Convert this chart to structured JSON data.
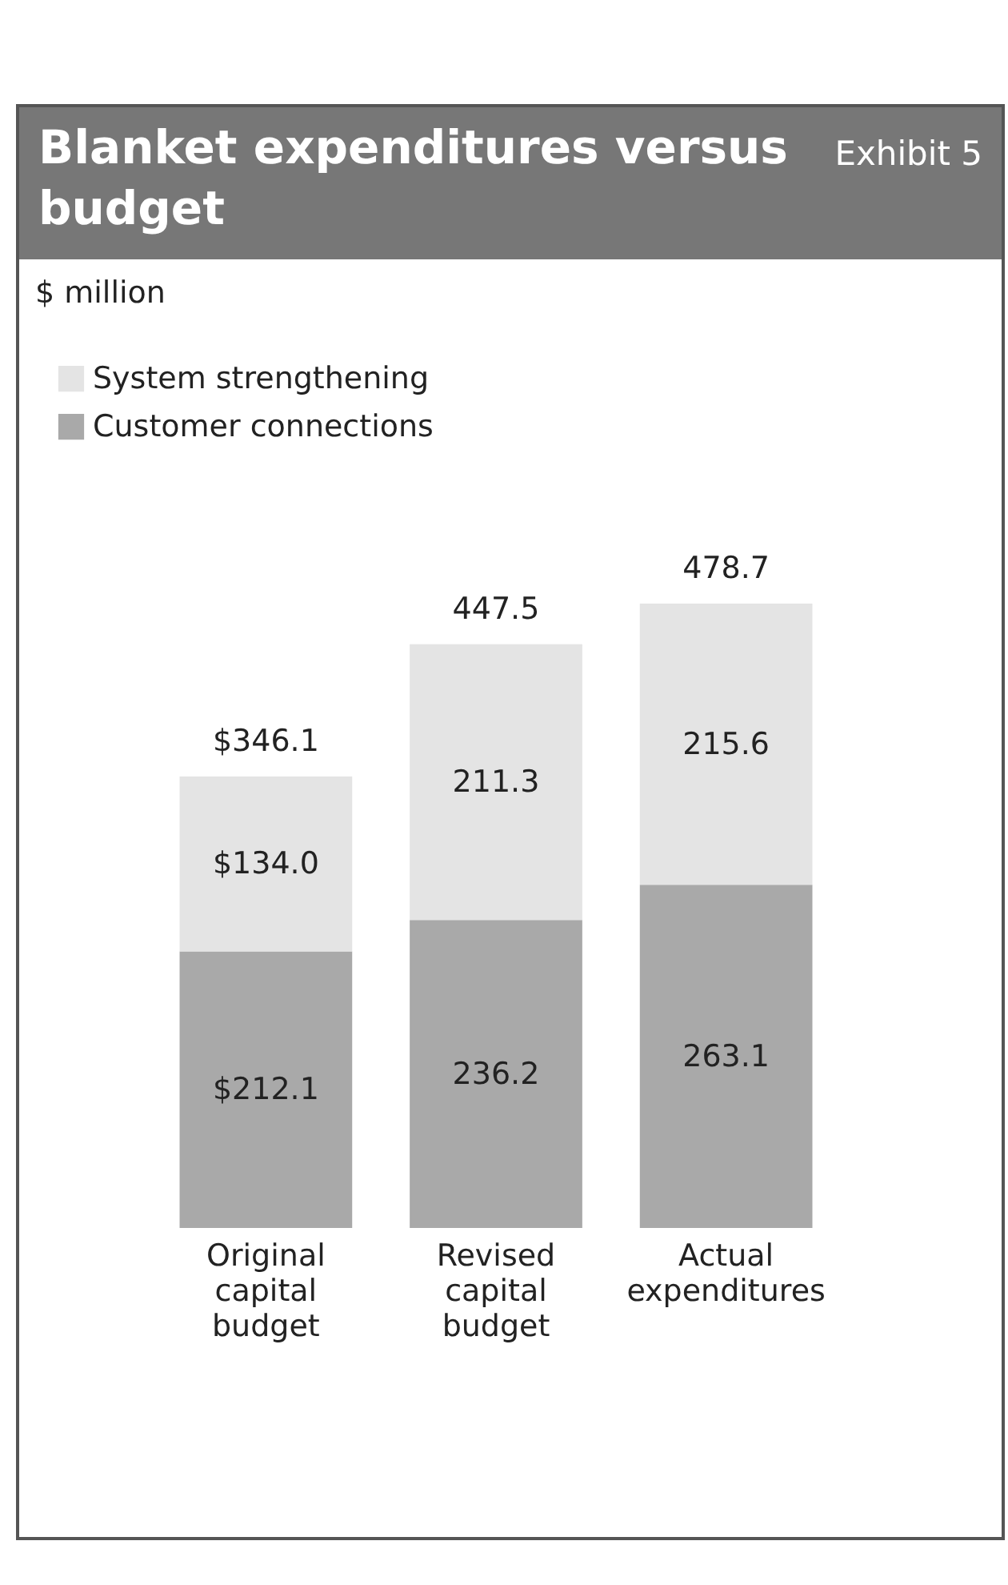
{
  "chart_data": {
    "type": "bar",
    "title": "Blanket expenditures versus budget",
    "subtitle": "Exhibit 5",
    "annotations": [
      "$ million"
    ],
    "categories": [
      "Original capital budget",
      "Revised capital budget",
      "Actual expenditures"
    ],
    "stacked": true,
    "legend": "top left",
    "tick_labels": "x",
    "series": [
      {
        "name": "Customer connections",
        "color": "#a9a9a9",
        "values": [
          212.1,
          236.2,
          263.1
        ],
        "value_labels": [
          "$212.1",
          "236.2",
          "263.1"
        ]
      },
      {
        "name": "System strengthening",
        "color": "#e4e4e4",
        "values": [
          134.0,
          211.3,
          215.6
        ],
        "value_labels": [
          "$134.0",
          "211.3",
          "215.6"
        ]
      }
    ],
    "totals": [
      "$346.1",
      "447.5",
      "478.7"
    ]
  }
}
